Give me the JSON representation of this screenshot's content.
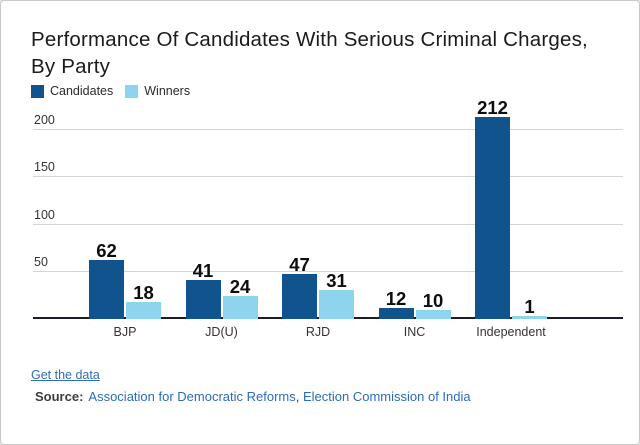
{
  "header": {
    "title_lines": [
      "Performance Of Candidates With Serious Criminal Charges,",
      "By Party"
    ]
  },
  "chart_data": {
    "type": "bar",
    "title": "Performance Of Candidates With Serious Criminal Charges, By Party",
    "categories": [
      "BJP",
      "JD(U)",
      "RJD",
      "INC",
      "Independent"
    ],
    "series": [
      {
        "name": "Candidates",
        "color": "#10538d",
        "values": [
          62,
          41,
          47,
          12,
          212
        ]
      },
      {
        "name": "Winners",
        "color": "#8fd4ef",
        "values": [
          18,
          24,
          31,
          10,
          1
        ]
      }
    ],
    "yticks": [
      50,
      100,
      150,
      200
    ],
    "ylim": [
      0,
      215
    ],
    "grid": true,
    "legend_position": "top-left",
    "value_labels": true,
    "xlabel": "",
    "ylabel": ""
  },
  "footer": {
    "link_label": "Get the data",
    "source_label": "Source:",
    "sources": [
      "Association for Democratic Reforms",
      "Election Commission of India"
    ],
    "separator": ", "
  },
  "colors": {
    "link_blue": "#2e6fb7",
    "gridline": "#d4d4d4",
    "axis_line": "#1c1c26"
  }
}
